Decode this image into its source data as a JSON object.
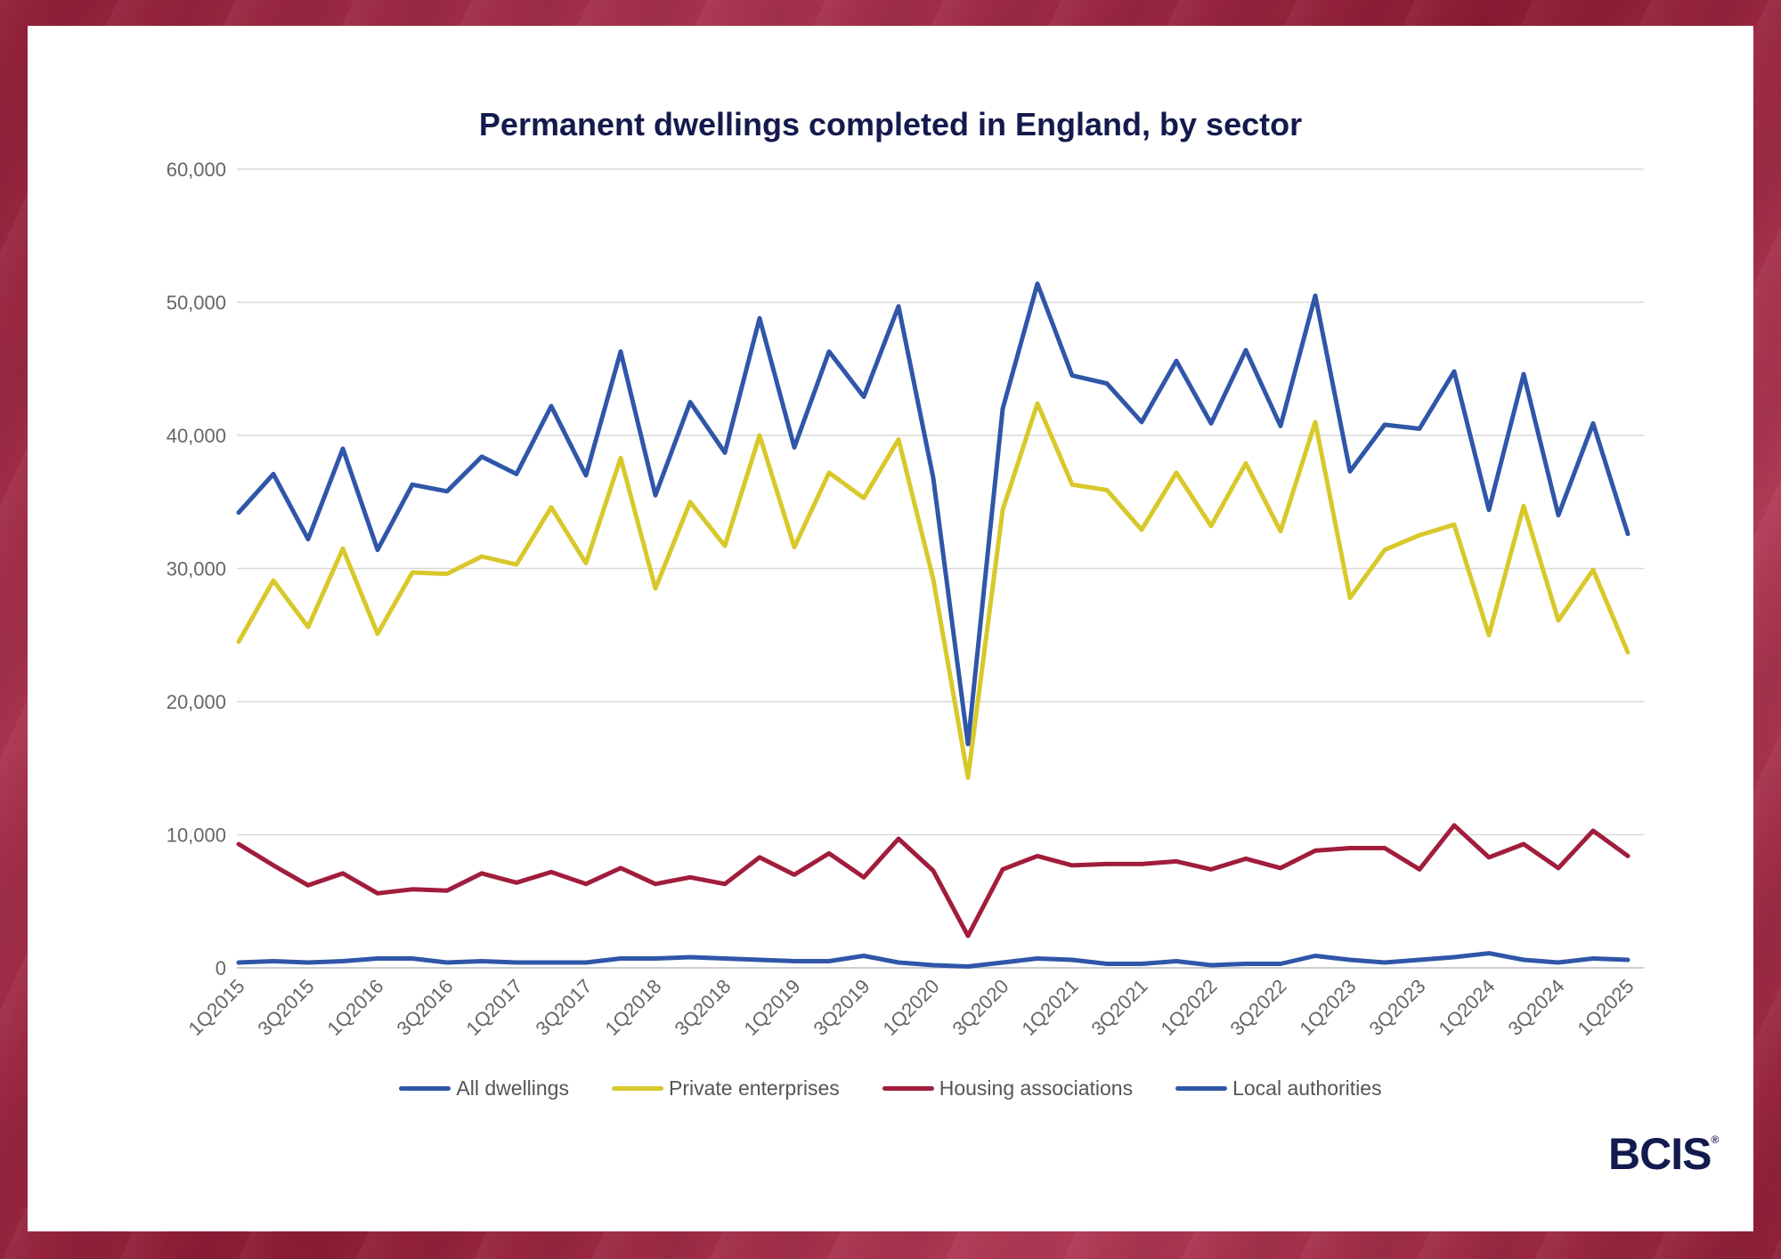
{
  "colors": {
    "all_dwellings": "#2f56a8",
    "private_enterprises": "#d8c82a",
    "housing_associations": "#a11d3c",
    "local_authorities": "#2f56a8"
  },
  "logo": {
    "text": "BCIS",
    "mark": "®"
  },
  "chart_data": {
    "type": "line",
    "title": "Permanent dwellings completed in England, by sector",
    "xlabel": "",
    "ylabel": "",
    "ylim": [
      0,
      60000
    ],
    "yticks": [
      "0",
      "10,000",
      "20,000",
      "30,000",
      "40,000",
      "50,000",
      "60,000"
    ],
    "grid": true,
    "legend_position": "bottom",
    "x": [
      "1Q2015",
      "2Q2015",
      "3Q2015",
      "4Q2015",
      "1Q2016",
      "2Q2016",
      "3Q2016",
      "4Q2016",
      "1Q2017",
      "2Q2017",
      "3Q2017",
      "4Q2017",
      "1Q2018",
      "2Q2018",
      "3Q2018",
      "4Q2018",
      "1Q2019",
      "2Q2019",
      "3Q2019",
      "4Q2019",
      "1Q2020",
      "2Q2020",
      "3Q2020",
      "4Q2020",
      "1Q2021",
      "2Q2021",
      "3Q2021",
      "4Q2021",
      "1Q2022",
      "2Q2022",
      "3Q2022",
      "4Q2022",
      "1Q2023",
      "2Q2023",
      "3Q2023",
      "4Q2023",
      "1Q2024",
      "2Q2024",
      "3Q2024",
      "4Q2024",
      "1Q2025"
    ],
    "xtick_labels": [
      "1Q2015",
      "3Q2015",
      "1Q2016",
      "3Q2016",
      "1Q2017",
      "3Q2017",
      "1Q2018",
      "3Q2018",
      "1Q2019",
      "3Q2019",
      "1Q2020",
      "3Q2020",
      "1Q2021",
      "3Q2021",
      "1Q2022",
      "3Q2022",
      "1Q2023",
      "3Q2023",
      "1Q2024",
      "3Q2024",
      "1Q2025"
    ],
    "series": [
      {
        "name": "All dwellings",
        "values": [
          34200,
          37100,
          32200,
          39000,
          31400,
          36300,
          35800,
          38400,
          37100,
          42200,
          37000,
          46300,
          35500,
          42500,
          38700,
          48800,
          39100,
          46300,
          42900,
          49700,
          36800,
          16800,
          42000,
          51400,
          44500,
          43900,
          41000,
          45600,
          40900,
          46400,
          40700,
          50500,
          37300,
          40800,
          40500,
          44800,
          34400,
          44600,
          34000,
          40900,
          32600
        ]
      },
      {
        "name": "Private enterprises",
        "values": [
          24500,
          29100,
          25600,
          31500,
          25100,
          29700,
          29600,
          30900,
          30300,
          34600,
          30400,
          38300,
          28500,
          35000,
          31700,
          40000,
          31600,
          37200,
          35300,
          39700,
          29200,
          14300,
          34400,
          42400,
          36300,
          35900,
          32900,
          37200,
          33200,
          37900,
          32800,
          41000,
          27800,
          31400,
          32500,
          33300,
          25000,
          34700,
          26100,
          29900,
          23700
        ]
      },
      {
        "name": "Housing associations",
        "values": [
          9300,
          7700,
          6200,
          7100,
          5600,
          5900,
          5800,
          7100,
          6400,
          7200,
          6300,
          7500,
          6300,
          6800,
          6300,
          8300,
          7000,
          8600,
          6800,
          9700,
          7300,
          2400,
          7400,
          8400,
          7700,
          7800,
          7800,
          8000,
          7400,
          8200,
          7500,
          8800,
          9000,
          9000,
          7400,
          10700,
          8300,
          9300,
          7500,
          10300,
          8400
        ]
      },
      {
        "name": "Local authorities",
        "values": [
          400,
          500,
          400,
          500,
          700,
          700,
          400,
          500,
          400,
          400,
          400,
          700,
          700,
          800,
          700,
          600,
          500,
          500,
          900,
          400,
          200,
          100,
          400,
          700,
          600,
          300,
          300,
          500,
          200,
          300,
          300,
          900,
          600,
          400,
          600,
          800,
          1100,
          600,
          400,
          700,
          600
        ]
      }
    ]
  }
}
